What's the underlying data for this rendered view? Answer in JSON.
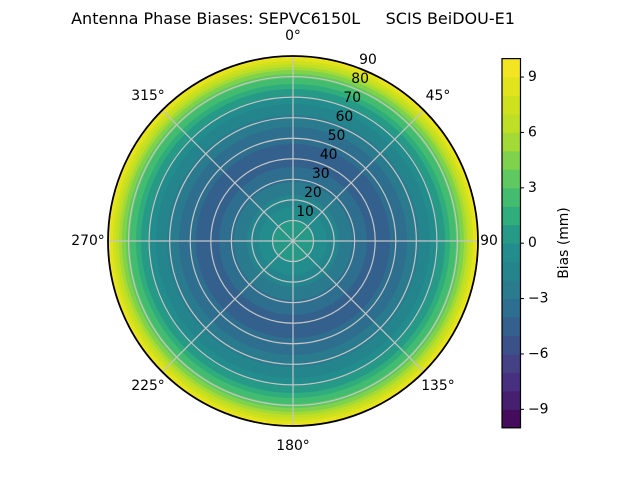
{
  "title": "Antenna Phase Biases: SEPVC6150L     SCIS BeiDOU-E1",
  "chart_data": {
    "type": "heatmap",
    "subtype": "polar-contourf",
    "title": "Antenna Phase Biases: SEPVC6150L     SCIS BeiDOU-E1",
    "angular_ticks": [
      {
        "deg": 0,
        "label": "0°"
      },
      {
        "deg": 45,
        "label": "45°"
      },
      {
        "deg": 90,
        "label": "90"
      },
      {
        "deg": 135,
        "label": "135°"
      },
      {
        "deg": 180,
        "label": "180°"
      },
      {
        "deg": 225,
        "label": "225°"
      },
      {
        "deg": 270,
        "label": "270°"
      },
      {
        "deg": 315,
        "label": "315°"
      }
    ],
    "radial_ticks": [
      {
        "deg": 10,
        "label": "10"
      },
      {
        "deg": 20,
        "label": "20"
      },
      {
        "deg": 30,
        "label": "30"
      },
      {
        "deg": 40,
        "label": "40"
      },
      {
        "deg": 50,
        "label": "50"
      },
      {
        "deg": 60,
        "label": "60"
      },
      {
        "deg": 70,
        "label": "70"
      },
      {
        "deg": 80,
        "label": "80"
      },
      {
        "deg": 90,
        "label": "90"
      }
    ],
    "rlabel_angle_deg": 22.5,
    "radial_max_deg": 90,
    "azimuthally_symmetric": true,
    "profile": {
      "zenith_deg": [
        0,
        5,
        10,
        15,
        20,
        25,
        30,
        35,
        40,
        45,
        50,
        55,
        60,
        65,
        70,
        75,
        80,
        85,
        88,
        90
      ],
      "bias_mm": [
        0.7,
        0.4,
        0.0,
        -0.7,
        -1.5,
        -2.4,
        -3.2,
        -3.9,
        -4.3,
        -4.2,
        -3.8,
        -3.1,
        -2.3,
        -1.4,
        -0.2,
        1.3,
        3.2,
        6.0,
        8.2,
        9.7
      ]
    },
    "colorbar": {
      "label": "Bias (mm)",
      "vmin": -10,
      "vmax": 10,
      "level_step_mm": 1,
      "tick_values": [
        9,
        6,
        3,
        0,
        -3,
        -6,
        -9
      ],
      "tick_labels": [
        "9",
        "6",
        "3",
        "0",
        "−3",
        "−6",
        "−9"
      ],
      "colormap": "viridis",
      "band_colors": [
        "#450b5d",
        "#471f6f",
        "#473080",
        "#444185",
        "#3b518a",
        "#34608d",
        "#2e6e8e",
        "#2a7b8e",
        "#24858d",
        "#228d8c",
        "#269a87",
        "#30ad7d",
        "#43bc70",
        "#5fc860",
        "#7fd24c",
        "#a3da36",
        "#bedf26",
        "#cfe01d",
        "#e1e31c",
        "#f3e522"
      ]
    },
    "grid_color": "#c5c5c5",
    "edge_color": "#000000",
    "legend_position": "right"
  }
}
